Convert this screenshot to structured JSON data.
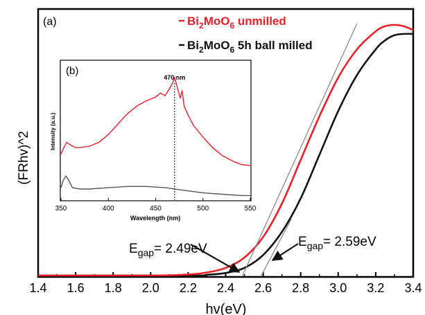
{
  "colors": {
    "unmilled": "#e8202e",
    "milled": "#111111",
    "tangent": "#8a8a8a",
    "annotation_arrow": "#111111"
  },
  "chart_data": [
    {
      "type": "line",
      "panel_label": "(a)",
      "xlabel": "hv(eV)",
      "ylabel": "(FRhv)^2",
      "xlim": [
        1.4,
        3.4
      ],
      "ylim": [
        0,
        1.0
      ],
      "x_ticks": [
        "1.4",
        "1.6",
        "1.8",
        "2.0",
        "2.2",
        "2.4",
        "2.6",
        "2.8",
        "3.0",
        "3.2",
        "3.4"
      ],
      "legend_position": "top-right",
      "series": [
        {
          "name": "Bi2MoO6 unmilled",
          "color": "#e8202e",
          "x": [
            1.4,
            2.0,
            2.2,
            2.3,
            2.4,
            2.5,
            2.6,
            2.7,
            2.8,
            2.9,
            3.0,
            3.1,
            3.2,
            3.25,
            3.3,
            3.35,
            3.4
          ],
          "y": [
            0.0,
            0.0,
            0.004,
            0.012,
            0.03,
            0.07,
            0.15,
            0.28,
            0.45,
            0.62,
            0.77,
            0.88,
            0.95,
            0.97,
            0.975,
            0.97,
            0.955
          ]
        },
        {
          "name": "Bi2MoO6 5h ball milled",
          "color": "#111111",
          "x": [
            1.4,
            2.2,
            2.3,
            2.4,
            2.5,
            2.6,
            2.7,
            2.8,
            2.9,
            3.0,
            3.1,
            3.2,
            3.25,
            3.3,
            3.35,
            3.4
          ],
          "y": [
            0.0,
            0.0,
            0.003,
            0.01,
            0.03,
            0.08,
            0.17,
            0.3,
            0.47,
            0.64,
            0.78,
            0.88,
            0.915,
            0.935,
            0.94,
            0.94
          ]
        }
      ],
      "tangents": [
        {
          "series": "Bi2MoO6 unmilled",
          "x_intercept": 2.49,
          "x_end": 3.1,
          "y_end": 0.98
        },
        {
          "series": "Bi2MoO6 5h ball milled",
          "x_intercept": 2.59,
          "x_end": 2.75,
          "y_end": 0.22
        }
      ],
      "annotations": [
        {
          "text_main": "E",
          "text_sub": "gap",
          "text_value": "= 2.49eV",
          "points_to_x": 2.49
        },
        {
          "text_main": "E",
          "text_sub": "gap",
          "text_value": "= 2.59eV",
          "points_to_x": 2.59
        }
      ],
      "legend": [
        {
          "main": "Bi",
          "sub1": "2",
          "mid": "MoO",
          "sub2": "6",
          "tail": " unmilled",
          "color": "#e8202e"
        },
        {
          "main": "Bi",
          "sub1": "2",
          "mid": "MoO",
          "sub2": "6",
          "tail": " 5h ball milled",
          "color": "#111111"
        }
      ]
    },
    {
      "type": "line",
      "panel_label": "(b)",
      "xlabel": "Wavelength (nm)",
      "ylabel": "Intensity (a.u.)",
      "xlim": [
        350,
        550
      ],
      "ylim": [
        0,
        1.0
      ],
      "x_ticks": [
        "350",
        "400",
        "450",
        "500",
        "550"
      ],
      "marker_line": {
        "x": 470,
        "label": "470 nm"
      },
      "series": [
        {
          "name": "unmilled",
          "color": "#e8202e",
          "x": [
            350,
            353,
            356,
            360,
            365,
            370,
            380,
            390,
            400,
            410,
            420,
            430,
            440,
            450,
            455,
            460,
            465,
            468,
            470,
            473,
            476,
            478,
            480,
            485,
            490,
            500,
            510,
            520,
            530,
            540,
            550
          ],
          "y": [
            0.35,
            0.4,
            0.44,
            0.42,
            0.4,
            0.4,
            0.41,
            0.44,
            0.5,
            0.58,
            0.66,
            0.72,
            0.76,
            0.79,
            0.82,
            0.8,
            0.86,
            0.9,
            0.94,
            0.86,
            0.78,
            0.84,
            0.72,
            0.64,
            0.57,
            0.48,
            0.4,
            0.34,
            0.3,
            0.27,
            0.26
          ]
        },
        {
          "name": "milled",
          "color": "#555555",
          "x": [
            350,
            352,
            355,
            358,
            362,
            370,
            380,
            400,
            420,
            440,
            460,
            480,
            500,
            520,
            540,
            550
          ],
          "y": [
            0.09,
            0.14,
            0.18,
            0.15,
            0.09,
            0.08,
            0.08,
            0.09,
            0.1,
            0.1,
            0.09,
            0.07,
            0.05,
            0.04,
            0.03,
            0.03
          ]
        }
      ]
    }
  ]
}
